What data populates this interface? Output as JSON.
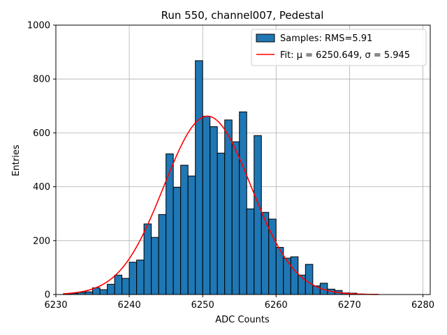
{
  "chart_data": {
    "type": "bar",
    "title": "Run 550, channel007, Pedestal",
    "xlabel": "ADC Counts",
    "ylabel": "Entries",
    "xlim": [
      6230,
      6281
    ],
    "ylim": [
      0,
      1000
    ],
    "xticks": [
      6230,
      6240,
      6250,
      6260,
      6270,
      6280
    ],
    "yticks": [
      0,
      200,
      400,
      600,
      800,
      1000
    ],
    "grid": true,
    "legend_position": "top-right",
    "bin_width": 1,
    "series": [
      {
        "name": "Samples: RMS=5.91",
        "kind": "histogram",
        "color": "#1f77b4",
        "edge_color": "#000000",
        "bin_starts": [
          6231,
          6232,
          6233,
          6234,
          6235,
          6236,
          6237,
          6238,
          6239,
          6240,
          6241,
          6242,
          6243,
          6244,
          6245,
          6246,
          6247,
          6248,
          6249,
          6250,
          6251,
          6252,
          6253,
          6254,
          6255,
          6256,
          6257,
          6258,
          6259,
          6260,
          6261,
          6262,
          6263,
          6264,
          6265,
          6266,
          6267,
          6268,
          6269,
          6270,
          6271,
          6272,
          6273
        ],
        "values": [
          2,
          4,
          8,
          10,
          25,
          18,
          38,
          72,
          60,
          120,
          128,
          262,
          212,
          297,
          522,
          398,
          480,
          440,
          868,
          662,
          623,
          525,
          648,
          567,
          678,
          318,
          590,
          305,
          280,
          175,
          135,
          140,
          72,
          112,
          32,
          42,
          20,
          15,
          6,
          5,
          2,
          0,
          0
        ]
      },
      {
        "name": "Fit: μ = 6250.649, σ = 5.945",
        "kind": "gaussian",
        "color": "#ff0000",
        "mu": 6250.649,
        "sigma": 5.945,
        "amplitude": 662,
        "x_range": [
          6231,
          6274
        ]
      }
    ]
  }
}
